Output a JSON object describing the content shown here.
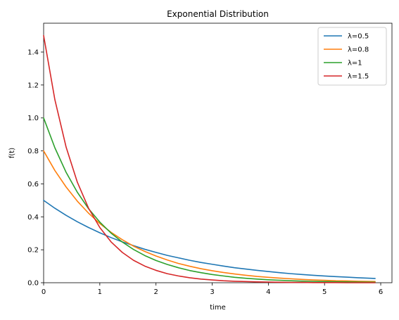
{
  "chart_data": {
    "type": "line",
    "title": "Exponential Distribution",
    "xlabel": "time",
    "ylabel": "f(t)",
    "xlim": [
      0,
      6.2
    ],
    "ylim": [
      0,
      1.575
    ],
    "x_ticks": [
      "0",
      "1",
      "2",
      "3",
      "4",
      "5",
      "6"
    ],
    "y_ticks": [
      "0.0",
      "0.2",
      "0.4",
      "0.6",
      "0.8",
      "1.0",
      "1.2",
      "1.4"
    ],
    "grid": false,
    "legend_position": "top-right",
    "x": [
      0,
      0.2,
      0.4,
      0.6,
      0.8,
      1.0,
      1.2,
      1.4,
      1.6,
      1.8,
      2.0,
      2.2,
      2.4,
      2.6,
      2.8,
      3.0,
      3.2,
      3.4,
      3.6,
      3.8,
      4.0,
      4.2,
      4.4,
      4.6,
      4.8,
      5.0,
      5.2,
      5.4,
      5.6,
      5.9
    ],
    "series": [
      {
        "name": "λ=0.5",
        "color": "#1f77b4",
        "values": [
          0.5,
          0.452,
          0.409,
          0.37,
          0.335,
          0.303,
          0.274,
          0.248,
          0.225,
          0.203,
          0.184,
          0.166,
          0.151,
          0.136,
          0.123,
          0.112,
          0.101,
          0.091,
          0.083,
          0.075,
          0.068,
          0.061,
          0.055,
          0.05,
          0.045,
          0.041,
          0.037,
          0.034,
          0.03,
          0.026
        ]
      },
      {
        "name": "λ=0.8",
        "color": "#ff7f0e",
        "values": [
          0.8,
          0.681,
          0.581,
          0.495,
          0.422,
          0.359,
          0.306,
          0.261,
          0.222,
          0.19,
          0.162,
          0.138,
          0.117,
          0.1,
          0.085,
          0.073,
          0.062,
          0.053,
          0.045,
          0.038,
          0.033,
          0.028,
          0.024,
          0.02,
          0.017,
          0.015,
          0.012,
          0.011,
          0.009,
          0.007
        ]
      },
      {
        "name": "λ=1",
        "color": "#2ca02c",
        "values": [
          1.0,
          0.819,
          0.67,
          0.549,
          0.449,
          0.368,
          0.301,
          0.247,
          0.202,
          0.165,
          0.135,
          0.111,
          0.091,
          0.074,
          0.061,
          0.05,
          0.041,
          0.033,
          0.027,
          0.022,
          0.018,
          0.015,
          0.012,
          0.01,
          0.008,
          0.007,
          0.006,
          0.005,
          0.004,
          0.003
        ]
      },
      {
        "name": "λ=1.5",
        "color": "#d62728",
        "values": [
          1.5,
          1.111,
          0.823,
          0.61,
          0.452,
          0.335,
          0.248,
          0.184,
          0.136,
          0.101,
          0.075,
          0.055,
          0.041,
          0.03,
          0.022,
          0.017,
          0.012,
          0.009,
          0.007,
          0.005,
          0.004,
          0.003,
          0.002,
          0.002,
          0.001,
          0.001,
          0.001,
          0.0,
          0.0,
          0.0
        ]
      }
    ]
  }
}
